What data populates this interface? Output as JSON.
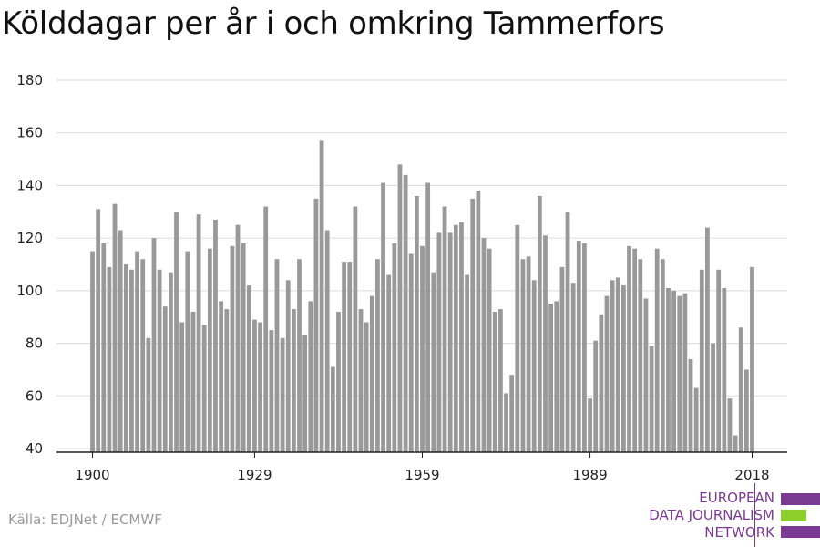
{
  "title": "Kölddagar per år i och omkring Tammerfors",
  "source": "Källa: EDJNet / ECMWF",
  "logo": {
    "line1": "EUROPEAN",
    "line2": "DATA JOURNALISM",
    "line3": "NETWORK",
    "colors": {
      "text": "#7a3a92",
      "purple": "#7a3a92",
      "green": "#8ccf2b"
    }
  },
  "chart_data": {
    "type": "bar",
    "title": "Kölddagar per år i och omkring Tammerfors",
    "xlabel": "",
    "ylabel": "",
    "ylim": [
      40,
      180
    ],
    "yticks": [
      40,
      60,
      80,
      100,
      120,
      140,
      160,
      180
    ],
    "xticks": [
      1900,
      1929,
      1959,
      1989,
      2018
    ],
    "grid": true,
    "bar_color": "#999999",
    "years": [
      1900,
      1901,
      1902,
      1903,
      1904,
      1905,
      1906,
      1907,
      1908,
      1909,
      1910,
      1911,
      1912,
      1913,
      1914,
      1915,
      1916,
      1917,
      1918,
      1919,
      1920,
      1921,
      1922,
      1923,
      1924,
      1925,
      1926,
      1927,
      1928,
      1929,
      1930,
      1931,
      1932,
      1933,
      1934,
      1935,
      1936,
      1937,
      1938,
      1939,
      1940,
      1941,
      1942,
      1943,
      1944,
      1945,
      1946,
      1947,
      1948,
      1949,
      1950,
      1951,
      1952,
      1953,
      1954,
      1955,
      1956,
      1957,
      1958,
      1959,
      1960,
      1961,
      1962,
      1963,
      1964,
      1965,
      1966,
      1967,
      1968,
      1969,
      1970,
      1971,
      1972,
      1973,
      1974,
      1975,
      1976,
      1977,
      1978,
      1979,
      1980,
      1981,
      1982,
      1983,
      1984,
      1985,
      1986,
      1987,
      1988,
      1989,
      1990,
      1991,
      1992,
      1993,
      1994,
      1995,
      1996,
      1997,
      1998,
      1999,
      2000,
      2001,
      2002,
      2003,
      2004,
      2005,
      2006,
      2007,
      2008,
      2009,
      2010,
      2011,
      2012,
      2013,
      2014,
      2015,
      2016,
      2017,
      2018
    ],
    "values": [
      115,
      131,
      118,
      109,
      133,
      123,
      110,
      108,
      115,
      112,
      82,
      120,
      108,
      94,
      107,
      130,
      88,
      115,
      92,
      129,
      87,
      116,
      127,
      96,
      93,
      117,
      125,
      118,
      102,
      89,
      88,
      132,
      85,
      112,
      82,
      104,
      93,
      112,
      83,
      96,
      135,
      157,
      123,
      71,
      92,
      111,
      111,
      132,
      93,
      88,
      98,
      112,
      141,
      106,
      118,
      148,
      144,
      114,
      136,
      117,
      141,
      107,
      122,
      132,
      122,
      125,
      126,
      106,
      135,
      138,
      120,
      116,
      92,
      93,
      61,
      68,
      125,
      112,
      113,
      104,
      136,
      121,
      95,
      96,
      109,
      130,
      103,
      119,
      118,
      59,
      81,
      91,
      98,
      104,
      105,
      102,
      117,
      116,
      112,
      97,
      79,
      116,
      112,
      101,
      100,
      98,
      99,
      74,
      63,
      108,
      124,
      80,
      108,
      101,
      59,
      45,
      86,
      70,
      109
    ]
  }
}
